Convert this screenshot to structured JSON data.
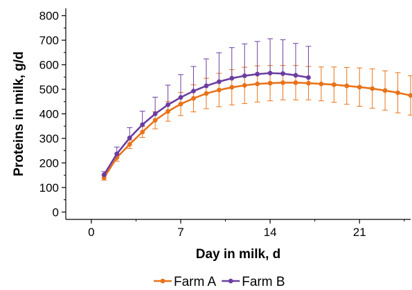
{
  "chart_data": {
    "type": "line",
    "title": "",
    "xlabel": "Day in milk, d",
    "ylabel": "Proteins in milk, g/d",
    "xlim": [
      -2,
      25
    ],
    "ylim": [
      -30,
      830
    ],
    "xticks": [
      0,
      7,
      14,
      21
    ],
    "yticks": [
      0,
      100,
      200,
      300,
      400,
      500,
      600,
      700,
      800
    ],
    "grid": false,
    "legend_position": "bottom-center",
    "error_bars": "upper and lower",
    "series": [
      {
        "name": "Farm A",
        "color": "#E8731A",
        "error_direction": "both",
        "x": [
          1,
          2,
          3,
          4,
          5,
          6,
          7,
          8,
          9,
          10,
          11,
          12,
          13,
          14,
          15,
          16,
          17,
          18,
          19,
          20,
          21,
          22,
          23,
          24,
          25
        ],
        "y": [
          140,
          222,
          276,
          326,
          374,
          410,
          440,
          463,
          483,
          497,
          508,
          516,
          522,
          525,
          527,
          527,
          525,
          522,
          519,
          514,
          509,
          503,
          495,
          486,
          475
        ],
        "err": [
          10,
          15,
          17,
          22,
          35,
          40,
          47,
          55,
          62,
          68,
          72,
          74,
          74,
          72,
          70,
          70,
          68,
          69,
          72,
          75,
          78,
          80,
          80,
          82,
          80
        ]
      },
      {
        "name": "Farm B",
        "color": "#6A3EA1",
        "error_direction": "up",
        "x": [
          1,
          2,
          3,
          4,
          5,
          6,
          7,
          8,
          9,
          10,
          11,
          12,
          13,
          14,
          15,
          16,
          17
        ],
        "y": [
          152,
          237,
          302,
          356,
          400,
          437,
          467,
          493,
          514,
          531,
          545,
          555,
          562,
          566,
          564,
          557,
          548
        ],
        "err": [
          13,
          28,
          42,
          55,
          68,
          80,
          93,
          100,
          110,
          118,
          125,
          130,
          133,
          140,
          138,
          130,
          127
        ]
      }
    ]
  }
}
